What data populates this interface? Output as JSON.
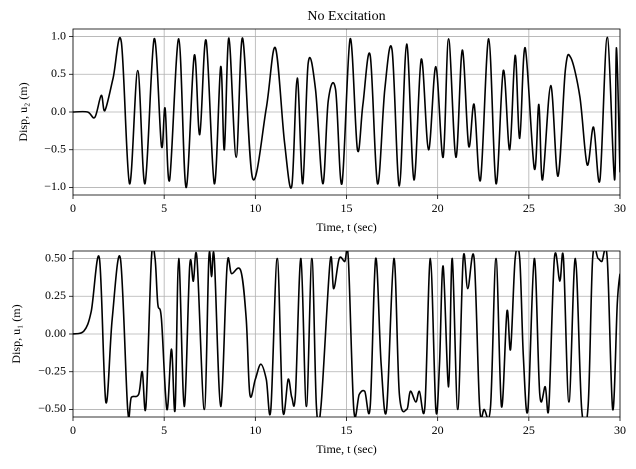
{
  "chart_data": [
    {
      "type": "line",
      "title": "No Excitation",
      "xlabel": "Time, t (sec)",
      "ylabel": "Disp, u₂ (m)",
      "color": "#000000",
      "grid": true,
      "xlim": [
        0,
        30
      ],
      "xticks": [
        0,
        5,
        10,
        15,
        20,
        25,
        30
      ],
      "ylim": [
        -1.1,
        1.1
      ],
      "yticks": [
        {
          "value": -1,
          "label": "−1.0"
        },
        {
          "value": -0.5,
          "label": "−0.5"
        },
        {
          "value": 0,
          "label": "0.0"
        },
        {
          "value": 0.5,
          "label": "0.5"
        },
        {
          "value": 1,
          "label": "1.0"
        }
      ],
      "x": [
        0,
        0.8,
        1.2,
        1.55,
        1.75,
        2.2,
        2.65,
        3.1,
        3.55,
        3.95,
        4.45,
        4.85,
        5.05,
        5.3,
        5.8,
        6.2,
        6.65,
        6.95,
        7.3,
        7.75,
        8.1,
        8.3,
        8.55,
        8.95,
        9.3,
        9.85,
        10.6,
        11.1,
        11.6,
        12.0,
        12.3,
        12.6,
        12.9,
        13.3,
        13.7,
        14.0,
        14.4,
        14.75,
        15.2,
        15.6,
        15.9,
        16.3,
        16.7,
        17.1,
        17.5,
        17.9,
        18.3,
        18.7,
        19.1,
        19.5,
        19.9,
        20.3,
        20.6,
        21.0,
        21.35,
        21.7,
        22.0,
        22.35,
        22.8,
        23.2,
        23.6,
        23.95,
        24.25,
        24.5,
        24.8,
        25.3,
        25.55,
        25.75,
        26.2,
        26.6,
        27.0,
        27.3,
        27.8,
        28.2,
        28.55,
        28.9,
        29.3,
        29.7,
        29.8,
        30
      ],
      "values": [
        0,
        0,
        -0.07,
        0.22,
        0.02,
        0.45,
        0.93,
        -0.95,
        0.55,
        -0.95,
        0.97,
        -0.45,
        0.05,
        -0.9,
        0.97,
        -1.0,
        0.75,
        -0.3,
        0.95,
        -0.95,
        0.6,
        -0.5,
        0.98,
        -0.6,
        0.98,
        -0.88,
        0.05,
        0.85,
        -0.4,
        -0.98,
        0.45,
        -0.95,
        0.65,
        0.3,
        -0.95,
        0.15,
        0.3,
        -0.95,
        0.97,
        -0.5,
        0.1,
        0.75,
        -0.95,
        0.3,
        0.82,
        -0.98,
        0.9,
        -0.9,
        0.7,
        -0.5,
        0.6,
        -0.6,
        0.97,
        -0.6,
        0.82,
        -0.45,
        0.1,
        -0.9,
        0.97,
        -0.95,
        0.55,
        -0.5,
        0.75,
        -0.35,
        0.85,
        -0.75,
        0.1,
        -0.9,
        0.35,
        -0.85,
        0.55,
        0.72,
        0.2,
        -0.7,
        -0.2,
        -0.9,
        0.99,
        -0.9,
        0.85,
        -0.8
      ]
    },
    {
      "type": "line",
      "xlabel": "Time, t (sec)",
      "ylabel": "Disp, u₁ (m)",
      "color": "#000000",
      "grid": true,
      "xlim": [
        0,
        30
      ],
      "xticks": [
        0,
        5,
        10,
        15,
        20,
        25,
        30
      ],
      "ylim": [
        -0.55,
        0.55
      ],
      "yticks": [
        {
          "value": -0.5,
          "label": "−0.50"
        },
        {
          "value": -0.25,
          "label": "−0.25"
        },
        {
          "value": 0,
          "label": "0.00"
        },
        {
          "value": 0.25,
          "label": "0.25"
        },
        {
          "value": 0.5,
          "label": "0.50"
        }
      ],
      "x": [
        0,
        0.6,
        1.0,
        1.45,
        1.8,
        2.15,
        2.6,
        3.0,
        3.2,
        3.6,
        3.8,
        4.0,
        4.3,
        4.5,
        4.65,
        4.85,
        5.15,
        5.4,
        5.6,
        5.8,
        6.1,
        6.4,
        6.6,
        6.8,
        7.2,
        7.45,
        7.6,
        7.75,
        8.1,
        8.45,
        8.7,
        9.2,
        9.5,
        9.7,
        10.0,
        10.3,
        10.6,
        10.85,
        11.2,
        11.5,
        11.8,
        12.0,
        12.2,
        12.5,
        12.8,
        13.1,
        13.35,
        13.6,
        14.1,
        14.3,
        14.6,
        14.9,
        15.1,
        15.4,
        15.7,
        16.0,
        16.3,
        16.6,
        16.9,
        17.2,
        17.6,
        17.9,
        18.3,
        18.5,
        18.8,
        19.0,
        19.3,
        19.6,
        19.9,
        20.1,
        20.3,
        20.6,
        20.8,
        21.1,
        21.4,
        21.65,
        22.0,
        22.3,
        22.55,
        22.9,
        23.2,
        23.5,
        23.8,
        24.0,
        24.25,
        24.5,
        24.7,
        24.95,
        25.3,
        25.6,
        25.9,
        26.1,
        26.4,
        26.7,
        26.9,
        27.2,
        27.55,
        27.9,
        28.25,
        28.5,
        28.8,
        29.0,
        29.3,
        29.6,
        29.85,
        30
      ],
      "values": [
        0,
        0.02,
        0.15,
        0.5,
        -0.45,
        0.1,
        0.5,
        -0.5,
        -0.42,
        -0.4,
        -0.25,
        -0.48,
        0.5,
        0.5,
        0.2,
        0.1,
        -0.5,
        -0.1,
        -0.5,
        0.5,
        -0.48,
        0.45,
        0.35,
        0.5,
        -0.5,
        0.5,
        0.38,
        0.5,
        -0.48,
        0.45,
        0.4,
        0.42,
        0.1,
        -0.4,
        -0.3,
        -0.2,
        -0.3,
        -0.5,
        0.5,
        -0.5,
        -0.3,
        -0.42,
        -0.4,
        0.5,
        -0.48,
        0.5,
        -0.48,
        -0.48,
        0.48,
        0.3,
        0.5,
        0.48,
        0.5,
        -0.5,
        -0.4,
        -0.38,
        -0.48,
        0.5,
        -0.2,
        -0.5,
        0.5,
        -0.4,
        -0.5,
        -0.38,
        -0.45,
        -0.38,
        -0.48,
        0.5,
        -0.5,
        -0.2,
        0.45,
        -0.35,
        0.5,
        -0.5,
        0.5,
        0.3,
        0.5,
        -0.48,
        -0.5,
        -0.48,
        0.5,
        -0.48,
        0.15,
        -0.1,
        0.5,
        0.5,
        -0.15,
        -0.5,
        0.5,
        -0.4,
        -0.35,
        -0.48,
        0.5,
        0.35,
        0.5,
        -0.45,
        0.5,
        -0.5,
        -0.48,
        0.5,
        0.5,
        0.48,
        0.5,
        -0.5,
        0.2,
        0.4
      ]
    }
  ]
}
